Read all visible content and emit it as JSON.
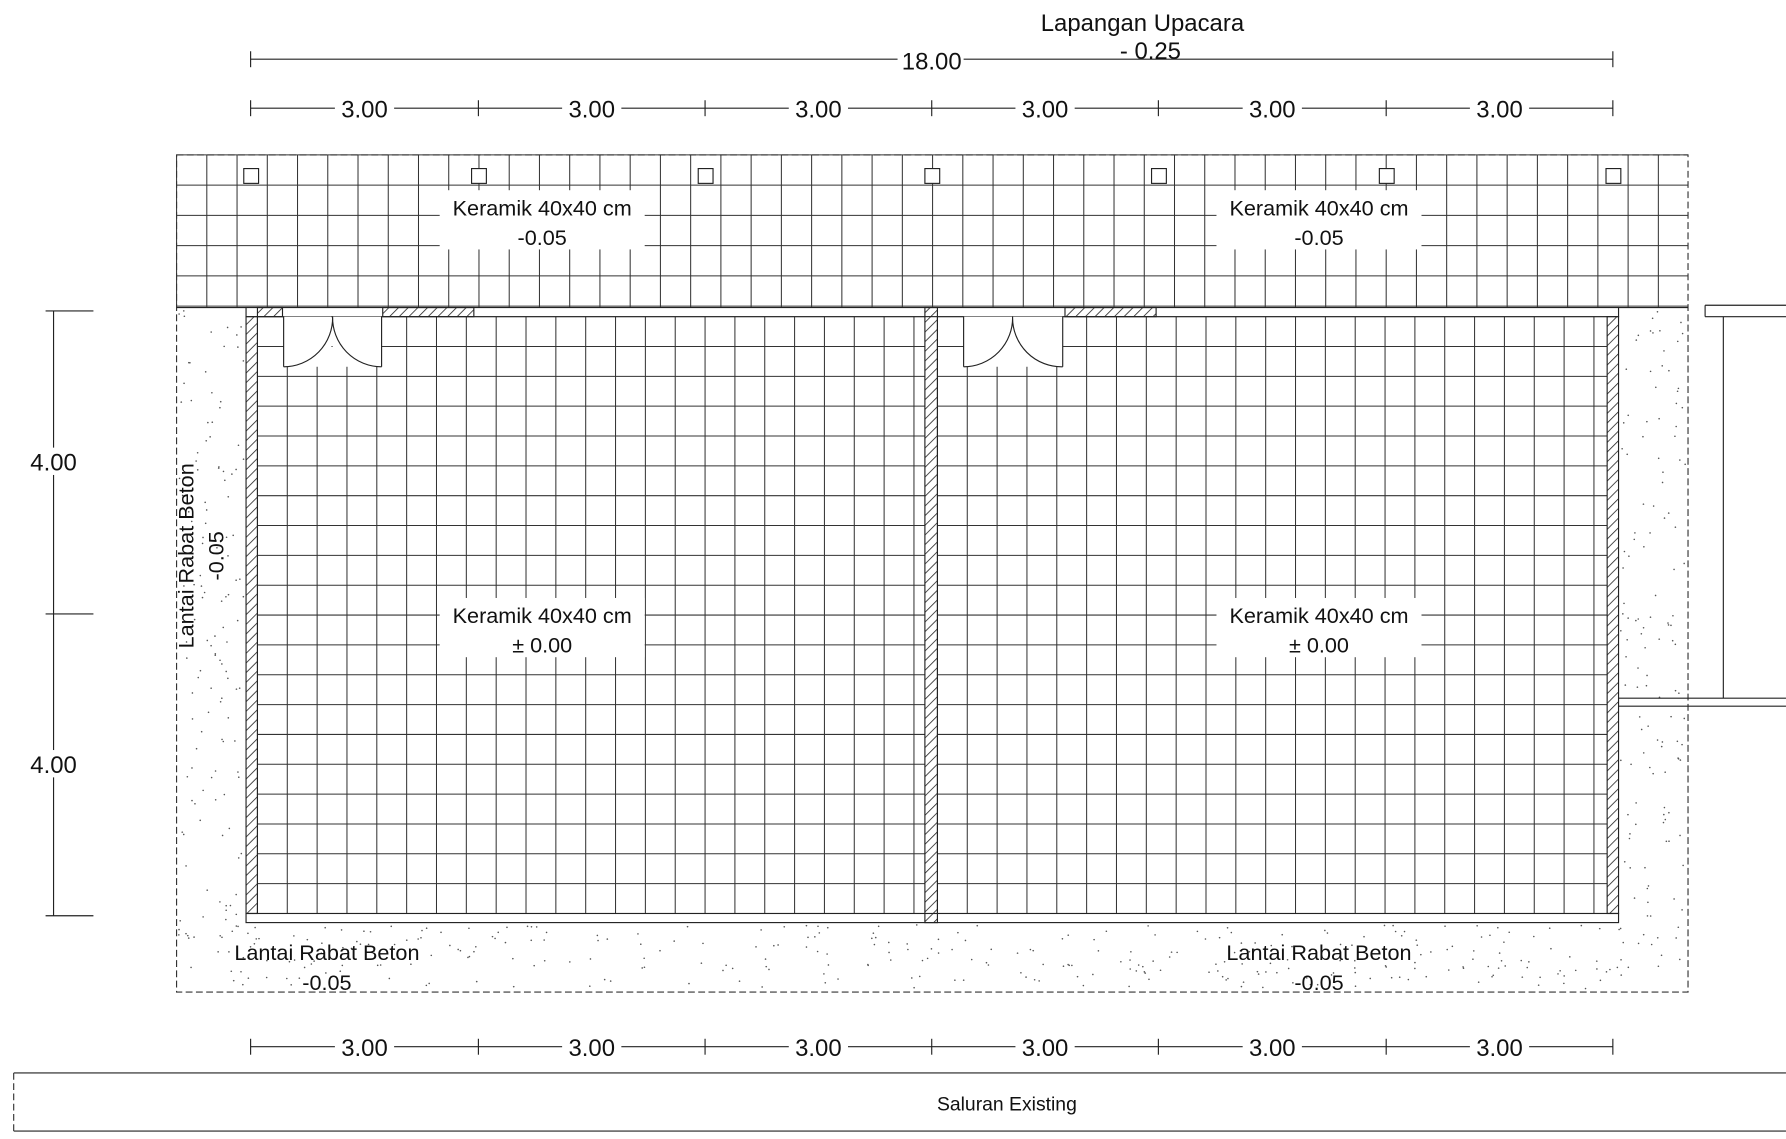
{
  "site": {
    "name": "Lapangan Upacara",
    "level": "- 0.25"
  },
  "dimensions": {
    "total": "18.00",
    "top": [
      "3.00",
      "3.00",
      "3.00",
      "3.00",
      "3.00",
      "3.00"
    ],
    "bottom": [
      "3.00",
      "3.00",
      "3.00",
      "3.00",
      "3.00",
      "3.00"
    ],
    "left": [
      "4.00",
      "4.00"
    ]
  },
  "areas": [
    {
      "name": "Keramik 40x40 cm",
      "level": "-0.05"
    },
    {
      "name": "Keramik 40x40 cm",
      "level": "-0.05"
    },
    {
      "name": "Keramik 40x40 cm",
      "level": "± 0.00"
    },
    {
      "name": "Keramik 40x40 cm",
      "level": "± 0.00"
    },
    {
      "name": "Lantai Rabat Beton",
      "level": "-0.05"
    },
    {
      "name": "Lantai Rabat Beton",
      "level": "-0.05"
    }
  ],
  "side_area": {
    "name": "Lantai Rabat Beton",
    "level": "-0.05"
  },
  "channel": {
    "label": "Saluran Existing"
  }
}
